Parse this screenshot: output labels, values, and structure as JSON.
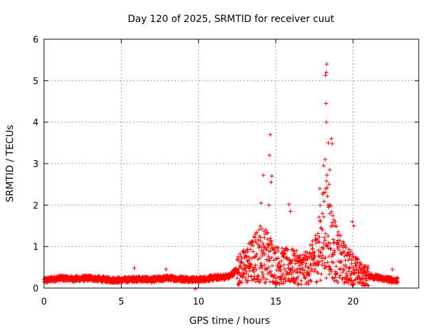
{
  "chart_data": {
    "type": "scatter",
    "title": "Day 120 of 2025, SRMTID for receiver cuut",
    "xlabel": "GPS time / hours",
    "ylabel": "SRMTID / TECUs",
    "xlim": [
      0,
      24.25
    ],
    "ylim": [
      0,
      6
    ],
    "xticks": [
      0,
      5,
      10,
      15,
      20
    ],
    "yticks": [
      0,
      1,
      2,
      3,
      4,
      5,
      6
    ],
    "grid": true,
    "marker": "plus",
    "color": "#ff0000",
    "series": [
      {
        "name": "SRMTID",
        "baseline_profile": [
          [
            0.0,
            0.18
          ],
          [
            1.0,
            0.24
          ],
          [
            2.0,
            0.22
          ],
          [
            3.0,
            0.24
          ],
          [
            4.0,
            0.2
          ],
          [
            5.0,
            0.19
          ],
          [
            6.0,
            0.22
          ],
          [
            7.0,
            0.2
          ],
          [
            8.0,
            0.24
          ],
          [
            9.0,
            0.22
          ],
          [
            10.0,
            0.2
          ],
          [
            11.0,
            0.25
          ],
          [
            12.0,
            0.28
          ],
          [
            12.5,
            0.45
          ],
          [
            13.0,
            0.55
          ],
          [
            13.5,
            0.7
          ],
          [
            14.0,
            0.9
          ],
          [
            14.5,
            0.8
          ],
          [
            15.0,
            0.6
          ],
          [
            15.5,
            0.55
          ],
          [
            16.0,
            0.55
          ],
          [
            16.5,
            0.5
          ],
          [
            17.0,
            0.5
          ],
          [
            17.5,
            0.7
          ],
          [
            18.0,
            1.3
          ],
          [
            18.3,
            1.6
          ],
          [
            18.6,
            1.2
          ],
          [
            19.0,
            0.8
          ],
          [
            19.5,
            0.6
          ],
          [
            20.0,
            0.5
          ],
          [
            20.5,
            0.35
          ],
          [
            21.0,
            0.3
          ],
          [
            22.0,
            0.22
          ],
          [
            22.9,
            0.18
          ]
        ],
        "peaks": [
          [
            14.05,
            2.05
          ],
          [
            14.2,
            2.72
          ],
          [
            14.55,
            2.0
          ],
          [
            14.65,
            3.7
          ],
          [
            14.7,
            2.55
          ],
          [
            14.6,
            3.2
          ],
          [
            14.75,
            2.7
          ],
          [
            15.85,
            2.02
          ],
          [
            15.95,
            1.85
          ],
          [
            13.7,
            1.3
          ],
          [
            17.85,
            2.4
          ],
          [
            18.1,
            2.95
          ],
          [
            18.2,
            3.1
          ],
          [
            18.25,
            4.45
          ],
          [
            18.3,
            5.4
          ],
          [
            18.27,
            5.2
          ],
          [
            18.22,
            5.13
          ],
          [
            18.28,
            4.0
          ],
          [
            18.4,
            3.5
          ],
          [
            18.6,
            3.6
          ],
          [
            18.65,
            3.48
          ],
          [
            18.5,
            2.85
          ],
          [
            18.45,
            2.5
          ],
          [
            19.95,
            1.6
          ],
          [
            20.05,
            1.5
          ],
          [
            5.85,
            0.48
          ],
          [
            7.9,
            0.45
          ],
          [
            9.8,
            -0.02
          ],
          [
            22.55,
            0.45
          ]
        ]
      }
    ]
  }
}
